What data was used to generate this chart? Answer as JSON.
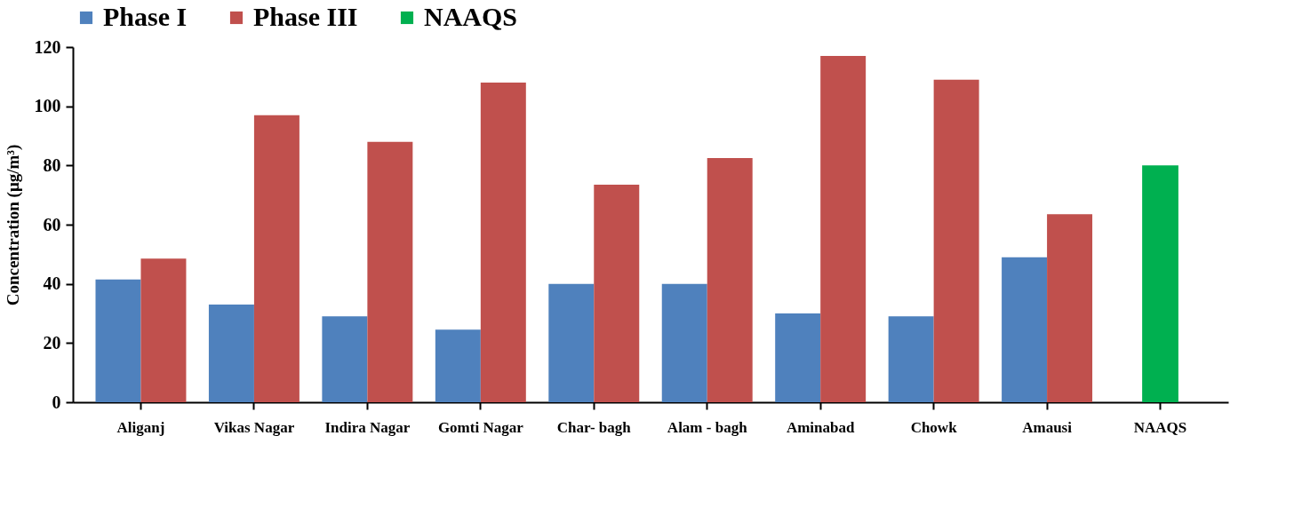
{
  "chart_data": {
    "type": "bar",
    "ylabel": "Concentration (μg/m³)",
    "categories": [
      "Aliganj",
      "Vikas\nNagar",
      "Indira\nNagar",
      "Gomti\nNagar",
      "Char-\nbagh",
      "Alam -\nbagh",
      "Aminabad",
      "Chowk",
      "Amausi",
      "NAAQS"
    ],
    "series": [
      {
        "name": "Phase I",
        "color": "#4f81bd",
        "values": [
          41.5,
          33,
          29,
          24.5,
          40,
          40,
          30,
          29,
          49,
          null
        ]
      },
      {
        "name": "Phase III",
        "color": "#c0504d",
        "values": [
          48.5,
          97,
          88,
          108,
          73.5,
          82.5,
          117,
          109,
          63.5,
          null
        ]
      },
      {
        "name": "NAAQS",
        "color": "#00b050",
        "values": [
          null,
          null,
          null,
          null,
          null,
          null,
          null,
          null,
          null,
          80
        ]
      }
    ],
    "ylim": [
      0,
      120
    ],
    "yticks": [
      0,
      20,
      40,
      60,
      80,
      100,
      120
    ],
    "grid": false,
    "legend": "top"
  }
}
